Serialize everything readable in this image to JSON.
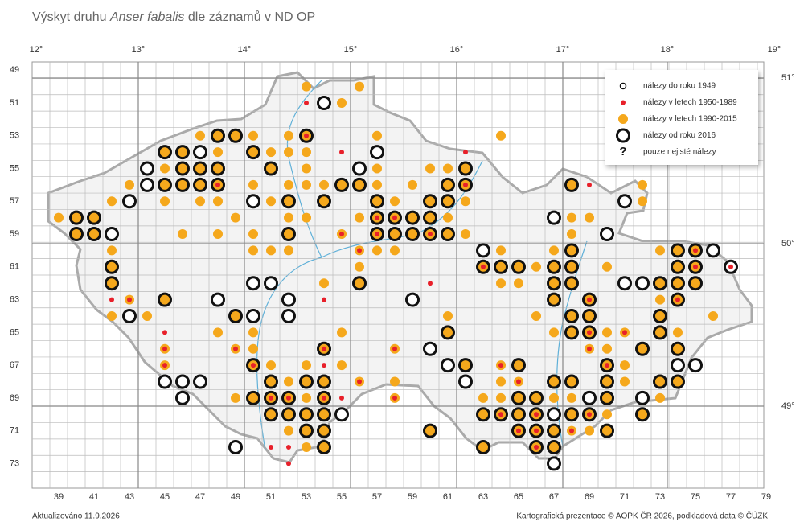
{
  "title_prefix": "Výskyt druhu",
  "species": "Anser fabalis",
  "title_suffix": "dle záznamů v ND OP",
  "lon_labels": [
    "12°",
    "13°",
    "14°",
    "15°",
    "16°",
    "17°",
    "18°",
    "19°"
  ],
  "lat_labels": [
    "51°",
    "50°",
    "49°"
  ],
  "col_labels": [
    39,
    41,
    43,
    45,
    47,
    49,
    51,
    53,
    55,
    57,
    59,
    61,
    63,
    65,
    67,
    69,
    71,
    73,
    75,
    77,
    79
  ],
  "row_labels": [
    49,
    51,
    53,
    55,
    57,
    59,
    61,
    63,
    65,
    67,
    69,
    71,
    73
  ],
  "legend": [
    "nálezy do roku 1949",
    "nálezy v letech 1950-1989",
    "nálezy v letech 1990-2015",
    "nálezy od roku 2016",
    "pouze nejisté nálezy"
  ],
  "legend_symbol": "?",
  "colors": {
    "red": "#e8202a",
    "orange": "#f5a81c"
  },
  "records": [
    [
      53,
      50,
      [
        2
      ]
    ],
    [
      56,
      50,
      [
        2
      ]
    ],
    [
      53,
      51,
      [
        1
      ]
    ],
    [
      54,
      51,
      [
        3
      ]
    ],
    [
      55,
      51,
      [
        2
      ]
    ],
    [
      47,
      53,
      [
        2
      ]
    ],
    [
      48,
      53,
      [
        2,
        3
      ]
    ],
    [
      49,
      53,
      [
        2,
        3
      ]
    ],
    [
      50,
      53,
      [
        2
      ]
    ],
    [
      52,
      53,
      [
        2
      ]
    ],
    [
      53,
      53,
      [
        1,
        2,
        3
      ]
    ],
    [
      57,
      53,
      [
        2
      ]
    ],
    [
      64,
      53,
      [
        2
      ]
    ],
    [
      45,
      54,
      [
        2,
        3
      ]
    ],
    [
      46,
      54,
      [
        2,
        3
      ]
    ],
    [
      47,
      54,
      [
        3
      ]
    ],
    [
      48,
      54,
      [
        2
      ]
    ],
    [
      50,
      54,
      [
        2,
        3
      ]
    ],
    [
      51,
      54,
      [
        2
      ]
    ],
    [
      52,
      54,
      [
        2
      ]
    ],
    [
      53,
      54,
      [
        2
      ]
    ],
    [
      55,
      54,
      [
        1
      ]
    ],
    [
      57,
      54,
      [
        3
      ]
    ],
    [
      62,
      54,
      [
        1
      ]
    ],
    [
      44,
      55,
      [
        3
      ]
    ],
    [
      45,
      55,
      [
        2
      ]
    ],
    [
      46,
      55,
      [
        2,
        3
      ]
    ],
    [
      47,
      55,
      [
        2,
        3
      ]
    ],
    [
      48,
      55,
      [
        2,
        3
      ]
    ],
    [
      51,
      55,
      [
        2,
        3
      ]
    ],
    [
      53,
      55,
      [
        2
      ]
    ],
    [
      56,
      55,
      [
        3
      ]
    ],
    [
      57,
      55,
      [
        2
      ]
    ],
    [
      60,
      55,
      [
        2
      ]
    ],
    [
      61,
      55,
      [
        2
      ]
    ],
    [
      62,
      55,
      [
        2,
        3
      ]
    ],
    [
      43,
      56,
      [
        2
      ]
    ],
    [
      44,
      56,
      [
        3
      ]
    ],
    [
      45,
      56,
      [
        2,
        3
      ]
    ],
    [
      46,
      56,
      [
        2,
        3
      ]
    ],
    [
      47,
      56,
      [
        2,
        3
      ]
    ],
    [
      48,
      56,
      [
        1,
        2,
        3
      ]
    ],
    [
      50,
      56,
      [
        2
      ]
    ],
    [
      52,
      56,
      [
        2
      ]
    ],
    [
      53,
      56,
      [
        2
      ]
    ],
    [
      54,
      56,
      [
        2
      ]
    ],
    [
      55,
      56,
      [
        2,
        3
      ]
    ],
    [
      56,
      56,
      [
        2,
        3
      ]
    ],
    [
      57,
      56,
      [
        2
      ]
    ],
    [
      59,
      56,
      [
        2
      ]
    ],
    [
      61,
      56,
      [
        2,
        3
      ]
    ],
    [
      62,
      56,
      [
        1,
        2,
        3
      ]
    ],
    [
      68,
      56,
      [
        2,
        3
      ]
    ],
    [
      69,
      56,
      [
        1
      ]
    ],
    [
      72,
      56,
      [
        2
      ]
    ],
    [
      42,
      57,
      [
        2
      ]
    ],
    [
      43,
      57,
      [
        3
      ]
    ],
    [
      45,
      57,
      [
        2
      ]
    ],
    [
      47,
      57,
      [
        2
      ]
    ],
    [
      48,
      57,
      [
        2
      ]
    ],
    [
      50,
      57,
      [
        3
      ]
    ],
    [
      51,
      57,
      [
        2
      ]
    ],
    [
      52,
      57,
      [
        2,
        3
      ]
    ],
    [
      54,
      57,
      [
        2,
        3
      ]
    ],
    [
      57,
      57,
      [
        2,
        3
      ]
    ],
    [
      58,
      57,
      [
        2
      ]
    ],
    [
      60,
      57,
      [
        2,
        3
      ]
    ],
    [
      61,
      57,
      [
        2,
        3
      ]
    ],
    [
      62,
      57,
      [
        2
      ]
    ],
    [
      71,
      57,
      [
        3
      ]
    ],
    [
      72,
      57,
      [
        2
      ]
    ],
    [
      39,
      58,
      [
        2
      ]
    ],
    [
      40,
      58,
      [
        2,
        3
      ]
    ],
    [
      41,
      58,
      [
        2,
        3
      ]
    ],
    [
      49,
      58,
      [
        2
      ]
    ],
    [
      52,
      58,
      [
        2
      ]
    ],
    [
      53,
      58,
      [
        2
      ]
    ],
    [
      56,
      58,
      [
        2
      ]
    ],
    [
      57,
      58,
      [
        1,
        2,
        3
      ]
    ],
    [
      58,
      58,
      [
        1,
        2,
        3
      ]
    ],
    [
      59,
      58,
      [
        2,
        3
      ]
    ],
    [
      60,
      58,
      [
        2,
        3
      ]
    ],
    [
      61,
      58,
      [
        2
      ]
    ],
    [
      67,
      58,
      [
        3
      ]
    ],
    [
      68,
      58,
      [
        2
      ]
    ],
    [
      69,
      58,
      [
        2
      ]
    ],
    [
      40,
      59,
      [
        2,
        3
      ]
    ],
    [
      41,
      59,
      [
        2,
        3
      ]
    ],
    [
      42,
      59,
      [
        3
      ]
    ],
    [
      46,
      59,
      [
        2
      ]
    ],
    [
      48,
      59,
      [
        2
      ]
    ],
    [
      50,
      59,
      [
        2
      ]
    ],
    [
      52,
      59,
      [
        2,
        3
      ]
    ],
    [
      55,
      59,
      [
        1,
        2
      ]
    ],
    [
      57,
      59,
      [
        1,
        2,
        3
      ]
    ],
    [
      58,
      59,
      [
        2,
        3
      ]
    ],
    [
      59,
      59,
      [
        2,
        3
      ]
    ],
    [
      60,
      59,
      [
        1,
        2,
        3
      ]
    ],
    [
      61,
      59,
      [
        2,
        3
      ]
    ],
    [
      62,
      59,
      [
        2
      ]
    ],
    [
      68,
      59,
      [
        2
      ]
    ],
    [
      70,
      59,
      [
        3
      ]
    ],
    [
      42,
      60,
      [
        2
      ]
    ],
    [
      50,
      60,
      [
        2
      ]
    ],
    [
      51,
      60,
      [
        2
      ]
    ],
    [
      52,
      60,
      [
        2
      ]
    ],
    [
      56,
      60,
      [
        1,
        2
      ]
    ],
    [
      57,
      60,
      [
        2
      ]
    ],
    [
      58,
      60,
      [
        2
      ]
    ],
    [
      63,
      60,
      [
        3
      ]
    ],
    [
      64,
      60,
      [
        2
      ]
    ],
    [
      67,
      60,
      [
        2
      ]
    ],
    [
      68,
      60,
      [
        2,
        3
      ]
    ],
    [
      73,
      60,
      [
        2
      ]
    ],
    [
      74,
      60,
      [
        2,
        3
      ]
    ],
    [
      75,
      60,
      [
        1,
        2,
        3
      ]
    ],
    [
      76,
      60,
      [
        3
      ]
    ],
    [
      42,
      61,
      [
        2,
        3
      ]
    ],
    [
      56,
      61,
      [
        2
      ]
    ],
    [
      63,
      61,
      [
        1,
        2,
        3
      ]
    ],
    [
      64,
      61,
      [
        2,
        3
      ]
    ],
    [
      65,
      61,
      [
        2,
        3
      ]
    ],
    [
      66,
      61,
      [
        2
      ]
    ],
    [
      67,
      61,
      [
        2,
        3
      ]
    ],
    [
      68,
      61,
      [
        2,
        3
      ]
    ],
    [
      70,
      61,
      [
        2
      ]
    ],
    [
      74,
      61,
      [
        2,
        3
      ]
    ],
    [
      75,
      61,
      [
        1,
        2,
        3
      ]
    ],
    [
      77,
      61,
      [
        1,
        3
      ]
    ],
    [
      42,
      62,
      [
        2,
        3
      ]
    ],
    [
      50,
      62,
      [
        3
      ]
    ],
    [
      51,
      62,
      [
        3
      ]
    ],
    [
      54,
      62,
      [
        2
      ]
    ],
    [
      56,
      62,
      [
        2,
        3
      ]
    ],
    [
      60,
      62,
      [
        1
      ]
    ],
    [
      64,
      62,
      [
        2
      ]
    ],
    [
      65,
      62,
      [
        2
      ]
    ],
    [
      67,
      62,
      [
        2,
        3
      ]
    ],
    [
      68,
      62,
      [
        2,
        3
      ]
    ],
    [
      71,
      62,
      [
        3
      ]
    ],
    [
      72,
      62,
      [
        3
      ]
    ],
    [
      73,
      62,
      [
        2,
        3
      ]
    ],
    [
      74,
      62,
      [
        2,
        3
      ]
    ],
    [
      75,
      62,
      [
        2,
        3
      ]
    ],
    [
      42,
      63,
      [
        1
      ]
    ],
    [
      43,
      63,
      [
        1,
        2
      ]
    ],
    [
      45,
      63,
      [
        2,
        3
      ]
    ],
    [
      48,
      63,
      [
        3
      ]
    ],
    [
      52,
      63,
      [
        3
      ]
    ],
    [
      54,
      63,
      [
        1
      ]
    ],
    [
      59,
      63,
      [
        3
      ]
    ],
    [
      67,
      63,
      [
        2,
        3
      ]
    ],
    [
      69,
      63,
      [
        1,
        2,
        3
      ]
    ],
    [
      73,
      63,
      [
        2
      ]
    ],
    [
      74,
      63,
      [
        1,
        2,
        3
      ]
    ],
    [
      42,
      64,
      [
        2
      ]
    ],
    [
      43,
      64,
      [
        3
      ]
    ],
    [
      44,
      64,
      [
        2
      ]
    ],
    [
      49,
      64,
      [
        2,
        3
      ]
    ],
    [
      50,
      64,
      [
        3
      ]
    ],
    [
      52,
      64,
      [
        3
      ]
    ],
    [
      61,
      64,
      [
        2
      ]
    ],
    [
      66,
      64,
      [
        2
      ]
    ],
    [
      68,
      64,
      [
        2,
        3
      ]
    ],
    [
      69,
      64,
      [
        2,
        3
      ]
    ],
    [
      73,
      64,
      [
        2,
        3
      ]
    ],
    [
      76,
      64,
      [
        2
      ]
    ],
    [
      45,
      65,
      [
        1
      ]
    ],
    [
      48,
      65,
      [
        2
      ]
    ],
    [
      50,
      65,
      [
        2
      ]
    ],
    [
      55,
      65,
      [
        2
      ]
    ],
    [
      61,
      65,
      [
        2,
        3
      ]
    ],
    [
      67,
      65,
      [
        2
      ]
    ],
    [
      68,
      65,
      [
        2,
        3
      ]
    ],
    [
      69,
      65,
      [
        1,
        2,
        3
      ]
    ],
    [
      70,
      65,
      [
        2
      ]
    ],
    [
      71,
      65,
      [
        1,
        2
      ]
    ],
    [
      73,
      65,
      [
        2,
        3
      ]
    ],
    [
      74,
      65,
      [
        2
      ]
    ],
    [
      45,
      66,
      [
        1,
        2
      ]
    ],
    [
      49,
      66,
      [
        1,
        2
      ]
    ],
    [
      50,
      66,
      [
        2
      ]
    ],
    [
      54,
      66,
      [
        1,
        2,
        3
      ]
    ],
    [
      58,
      66,
      [
        1,
        2
      ]
    ],
    [
      60,
      66,
      [
        3
      ]
    ],
    [
      69,
      66,
      [
        1,
        2
      ]
    ],
    [
      70,
      66,
      [
        2
      ]
    ],
    [
      72,
      66,
      [
        2,
        3
      ]
    ],
    [
      74,
      66,
      [
        2,
        3
      ]
    ],
    [
      45,
      67,
      [
        1,
        2
      ]
    ],
    [
      50,
      67,
      [
        1,
        2,
        3
      ]
    ],
    [
      51,
      67,
      [
        2
      ]
    ],
    [
      53,
      67,
      [
        2
      ]
    ],
    [
      54,
      67,
      [
        1
      ]
    ],
    [
      55,
      67,
      [
        2
      ]
    ],
    [
      61,
      67,
      [
        3
      ]
    ],
    [
      62,
      67,
      [
        2,
        3
      ]
    ],
    [
      64,
      67,
      [
        1,
        2
      ]
    ],
    [
      65,
      67,
      [
        2,
        3
      ]
    ],
    [
      70,
      67,
      [
        1,
        2,
        3
      ]
    ],
    [
      71,
      67,
      [
        2
      ]
    ],
    [
      74,
      67,
      [
        3
      ]
    ],
    [
      75,
      67,
      [
        3
      ]
    ],
    [
      45,
      68,
      [
        3
      ]
    ],
    [
      46,
      68,
      [
        3
      ]
    ],
    [
      47,
      68,
      [
        3
      ]
    ],
    [
      51,
      68,
      [
        2,
        3
      ]
    ],
    [
      52,
      68,
      [
        2
      ]
    ],
    [
      53,
      68,
      [
        2,
        3
      ]
    ],
    [
      54,
      68,
      [
        2,
        3
      ]
    ],
    [
      56,
      68,
      [
        1,
        2
      ]
    ],
    [
      58,
      68,
      [
        2
      ]
    ],
    [
      62,
      68,
      [
        3
      ]
    ],
    [
      64,
      68,
      [
        2
      ]
    ],
    [
      65,
      68,
      [
        1,
        2
      ]
    ],
    [
      67,
      68,
      [
        2,
        3
      ]
    ],
    [
      68,
      68,
      [
        2,
        3
      ]
    ],
    [
      70,
      68,
      [
        2,
        3
      ]
    ],
    [
      71,
      68,
      [
        2
      ]
    ],
    [
      73,
      68,
      [
        2,
        3
      ]
    ],
    [
      74,
      68,
      [
        2,
        3
      ]
    ],
    [
      46,
      69,
      [
        3
      ]
    ],
    [
      49,
      69,
      [
        2
      ]
    ],
    [
      50,
      69,
      [
        2,
        3
      ]
    ],
    [
      51,
      69,
      [
        1,
        2,
        3
      ]
    ],
    [
      52,
      69,
      [
        1,
        2,
        3
      ]
    ],
    [
      53,
      69,
      [
        2
      ]
    ],
    [
      54,
      69,
      [
        1,
        2,
        3
      ]
    ],
    [
      55,
      69,
      [
        1
      ]
    ],
    [
      58,
      69,
      [
        1,
        2
      ]
    ],
    [
      63,
      69,
      [
        2
      ]
    ],
    [
      64,
      69,
      [
        2
      ]
    ],
    [
      65,
      69,
      [
        2,
        3
      ]
    ],
    [
      66,
      69,
      [
        2,
        3
      ]
    ],
    [
      67,
      69,
      [
        2
      ]
    ],
    [
      68,
      69,
      [
        2
      ]
    ],
    [
      69,
      69,
      [
        3
      ]
    ],
    [
      70,
      69,
      [
        2,
        3
      ]
    ],
    [
      72,
      69,
      [
        3
      ]
    ],
    [
      73,
      69,
      [
        2
      ]
    ],
    [
      51,
      70,
      [
        2,
        3
      ]
    ],
    [
      52,
      70,
      [
        2,
        3
      ]
    ],
    [
      53,
      70,
      [
        2,
        3
      ]
    ],
    [
      54,
      70,
      [
        2,
        3
      ]
    ],
    [
      55,
      70,
      [
        3
      ]
    ],
    [
      63,
      70,
      [
        2,
        3
      ]
    ],
    [
      64,
      70,
      [
        1,
        2,
        3
      ]
    ],
    [
      65,
      70,
      [
        2,
        3
      ]
    ],
    [
      66,
      70,
      [
        1,
        2,
        3
      ]
    ],
    [
      67,
      70,
      [
        3
      ]
    ],
    [
      68,
      70,
      [
        2,
        3
      ]
    ],
    [
      69,
      70,
      [
        1,
        2,
        3
      ]
    ],
    [
      70,
      70,
      [
        2
      ]
    ],
    [
      72,
      70,
      [
        2,
        3
      ]
    ],
    [
      52,
      71,
      [
        2
      ]
    ],
    [
      53,
      71,
      [
        2,
        3
      ]
    ],
    [
      54,
      71,
      [
        2,
        3
      ]
    ],
    [
      60,
      71,
      [
        2,
        3
      ]
    ],
    [
      65,
      71,
      [
        1,
        2,
        3
      ]
    ],
    [
      66,
      71,
      [
        1,
        2,
        3
      ]
    ],
    [
      67,
      71,
      [
        2,
        3
      ]
    ],
    [
      68,
      71,
      [
        1,
        2
      ]
    ],
    [
      69,
      71,
      [
        2
      ]
    ],
    [
      70,
      71,
      [
        2,
        3
      ]
    ],
    [
      49,
      72,
      [
        3
      ]
    ],
    [
      51,
      72,
      [
        1
      ]
    ],
    [
      52,
      72,
      [
        1
      ]
    ],
    [
      53,
      72,
      [
        2
      ]
    ],
    [
      54,
      72,
      [
        2,
        3
      ]
    ],
    [
      63,
      72,
      [
        2,
        3
      ]
    ],
    [
      66,
      72,
      [
        1,
        2,
        3
      ]
    ],
    [
      67,
      72,
      [
        2,
        3
      ]
    ],
    [
      52,
      73,
      [
        1
      ]
    ],
    [
      67,
      73,
      [
        3
      ]
    ]
  ],
  "updated": "Aktualizováno 11.9.2026",
  "credits": "Kartografická prezentace © AOPK ČR 2026, podkladová data © ČÚZK"
}
